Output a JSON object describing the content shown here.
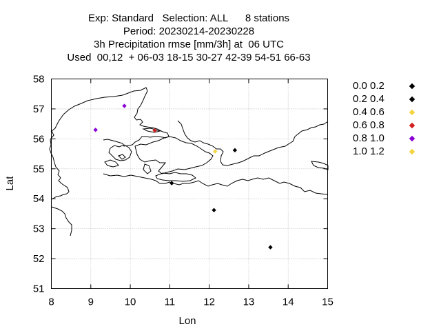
{
  "title": {
    "line1": "Exp: Standard   Selection: ALL      8 stations",
    "line2": "Period: 20230214-20230228",
    "line3": "3h Precipitation rmse [mm/3h] at  06 UTC",
    "line4": "Used  00,12  + 06-03 18-15 30-27 42-39 54-51 66-63"
  },
  "chart_data": {
    "type": "scatter",
    "xlabel": "Lon",
    "ylabel": "Lat",
    "xlim": [
      8,
      15
    ],
    "ylim": [
      51,
      58
    ],
    "xticks": [
      "8",
      "9",
      "10",
      "11",
      "12",
      "13",
      "14",
      "15"
    ],
    "yticks": [
      "51",
      "52",
      "53",
      "54",
      "55",
      "56",
      "57",
      "58"
    ],
    "grid": true,
    "legend_position": "right",
    "classes": [
      {
        "label": "0.0 0.2",
        "color": "#000000"
      },
      {
        "label": "0.2 0.4",
        "color": "#000000"
      },
      {
        "label": "0.4 0.6",
        "color": "#f5d442"
      },
      {
        "label": "0.6 0.8",
        "color": "#d42020"
      },
      {
        "label": "0.8 1.0",
        "color": "#8a00d4"
      },
      {
        "label": "1.0 1.2",
        "color": "#f5d442"
      }
    ],
    "points": [
      {
        "lon": 9.85,
        "lat": 57.1,
        "color": "#8a00d4"
      },
      {
        "lon": 9.12,
        "lat": 56.3,
        "color": "#8a00d4"
      },
      {
        "lon": 10.62,
        "lat": 56.28,
        "color": "#d42020"
      },
      {
        "lon": 12.15,
        "lat": 55.58,
        "color": "#f5d442"
      },
      {
        "lon": 12.65,
        "lat": 55.62,
        "color": "#000000"
      },
      {
        "lon": 11.05,
        "lat": 54.52,
        "color": "#000000"
      },
      {
        "lon": 12.12,
        "lat": 53.62,
        "color": "#000000"
      },
      {
        "lon": 13.55,
        "lat": 52.38,
        "color": "#000000"
      }
    ]
  }
}
